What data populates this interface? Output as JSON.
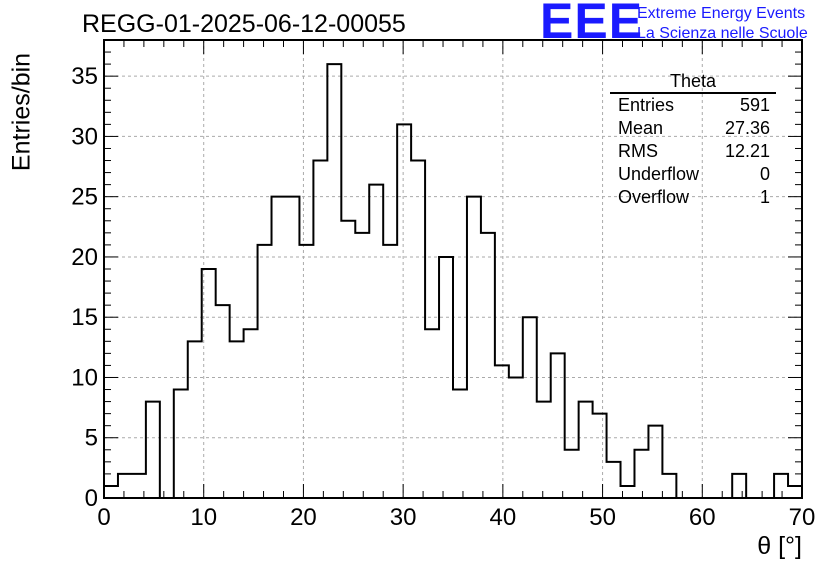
{
  "title": "REGG-01-2025-06-12-00055",
  "logo": {
    "mark": "EEE",
    "line1": "Extreme Energy Events",
    "line2": "La Scienza nelle Scuole",
    "color": "#1a1aff"
  },
  "stats": {
    "name": "Theta",
    "rows": [
      {
        "label": "Entries",
        "value": "591"
      },
      {
        "label": "Mean",
        "value": "27.36"
      },
      {
        "label": "RMS",
        "value": "12.21"
      },
      {
        "label": "Underflow",
        "value": "0"
      },
      {
        "label": "Overflow",
        "value": "1"
      }
    ]
  },
  "chart_data": {
    "type": "bar",
    "title": "REGG-01-2025-06-12-00055",
    "xlabel": "θ [°]",
    "ylabel": "Entries/bin",
    "xlim": [
      0,
      70
    ],
    "ylim": [
      0,
      38
    ],
    "bin_width": 1.4,
    "grid": true,
    "x_ticks": [
      0,
      10,
      20,
      30,
      40,
      50,
      60,
      70
    ],
    "y_ticks": [
      0,
      5,
      10,
      15,
      20,
      25,
      30,
      35
    ],
    "values": [
      1,
      2,
      2,
      8,
      0,
      9,
      13,
      19,
      16,
      13,
      14,
      21,
      25,
      25,
      21,
      28,
      36,
      23,
      22,
      26,
      21,
      31,
      28,
      14,
      20,
      9,
      25,
      22,
      11,
      10,
      15,
      8,
      12,
      4,
      8,
      7,
      3,
      1,
      4,
      6,
      2,
      0,
      0,
      0,
      0,
      2,
      0,
      0,
      2,
      1
    ]
  }
}
